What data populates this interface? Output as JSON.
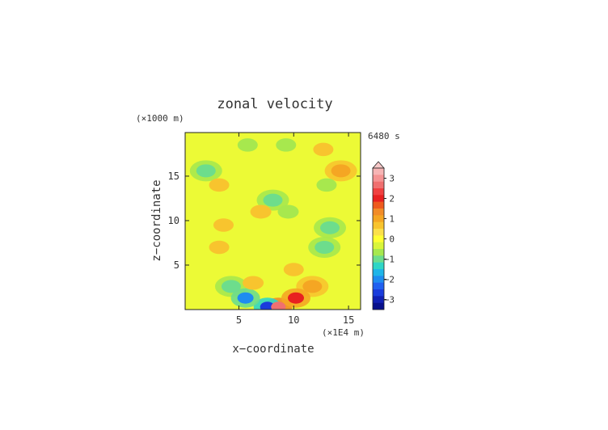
{
  "chart_data": {
    "type": "heatmap",
    "title": "zonal velocity",
    "xlabel": "x−coordinate",
    "ylabel": "z−coordinate",
    "x_unit_label": "(×1E4 m)",
    "y_unit_label": "(×1000 m)",
    "time_label": "6480 s",
    "x_range": [
      0.1,
      16.1
    ],
    "y_range": [
      0,
      19.9
    ],
    "x_ticks": [
      5,
      10,
      15
    ],
    "y_ticks": [
      5,
      10,
      15
    ],
    "colorbar": {
      "tick_labels": [
        "3",
        "2",
        "1",
        "0",
        "−1",
        "−2",
        "−3"
      ],
      "tick_values": [
        3,
        2,
        1,
        0,
        -1,
        -2,
        -3
      ],
      "levels": [
        3.25,
        3.0,
        2.75,
        2.5,
        2.25,
        2.0,
        1.75,
        1.5,
        1.25,
        1.0,
        0.75,
        0.5,
        0.25,
        0.0,
        -0.25,
        -0.5,
        -0.75,
        -1.0,
        -1.25,
        -1.5,
        -1.75,
        -2.0,
        -2.25,
        -2.5,
        -2.75,
        -3.0,
        -3.25
      ],
      "colors": [
        "#f7b5b5",
        "#f59494",
        "#f07070",
        "#f04040",
        "#e82020",
        "#ee5a1e",
        "#f28c28",
        "#f5a623",
        "#f8c42e",
        "#fbe04a",
        "#ffff32",
        "#d9f53a",
        "#a7e84e",
        "#6ddd8c",
        "#2fd6c6",
        "#1fb5e8",
        "#1e8cf0",
        "#2060f0",
        "#1a3cdc",
        "#1020b4",
        "#08108c"
      ],
      "extend_top_color": "#f7c8c8"
    },
    "background_value_color": "#ffff32",
    "features": [
      {
        "x": 2.0,
        "z": 15.6,
        "value": -1.0
      },
      {
        "x": 14.3,
        "z": 15.6,
        "value": 1.0
      },
      {
        "x": 3.2,
        "z": 14.0,
        "value": 0.75
      },
      {
        "x": 13.0,
        "z": 14.0,
        "value": -0.75
      },
      {
        "x": 5.6,
        "z": 1.3,
        "value": -2.0
      },
      {
        "x": 10.2,
        "z": 1.3,
        "value": 2.0
      },
      {
        "x": 7.6,
        "z": 0.3,
        "value": -2.5
      },
      {
        "x": 8.6,
        "z": 0.3,
        "value": 2.5
      },
      {
        "x": 4.3,
        "z": 2.6,
        "value": -1.0
      },
      {
        "x": 11.7,
        "z": 2.6,
        "value": 1.0
      },
      {
        "x": 12.8,
        "z": 7.0,
        "value": -1.0
      },
      {
        "x": 13.3,
        "z": 9.2,
        "value": -1.0
      },
      {
        "x": 3.2,
        "z": 7.0,
        "value": 0.75
      },
      {
        "x": 3.6,
        "z": 9.5,
        "value": 0.75
      },
      {
        "x": 8.1,
        "z": 12.3,
        "value": -1.0
      },
      {
        "x": 9.3,
        "z": 18.5,
        "value": -0.75
      },
      {
        "x": 5.8,
        "z": 18.5,
        "value": -0.75
      },
      {
        "x": 12.7,
        "z": 18.0,
        "value": 0.75
      },
      {
        "x": 6.3,
        "z": 3.0,
        "value": 0.5
      },
      {
        "x": 10.0,
        "z": 4.5,
        "value": 0.75
      },
      {
        "x": 7.0,
        "z": 11.0,
        "value": 0.5
      },
      {
        "x": 9.5,
        "z": 11.0,
        "value": -0.5
      }
    ]
  }
}
